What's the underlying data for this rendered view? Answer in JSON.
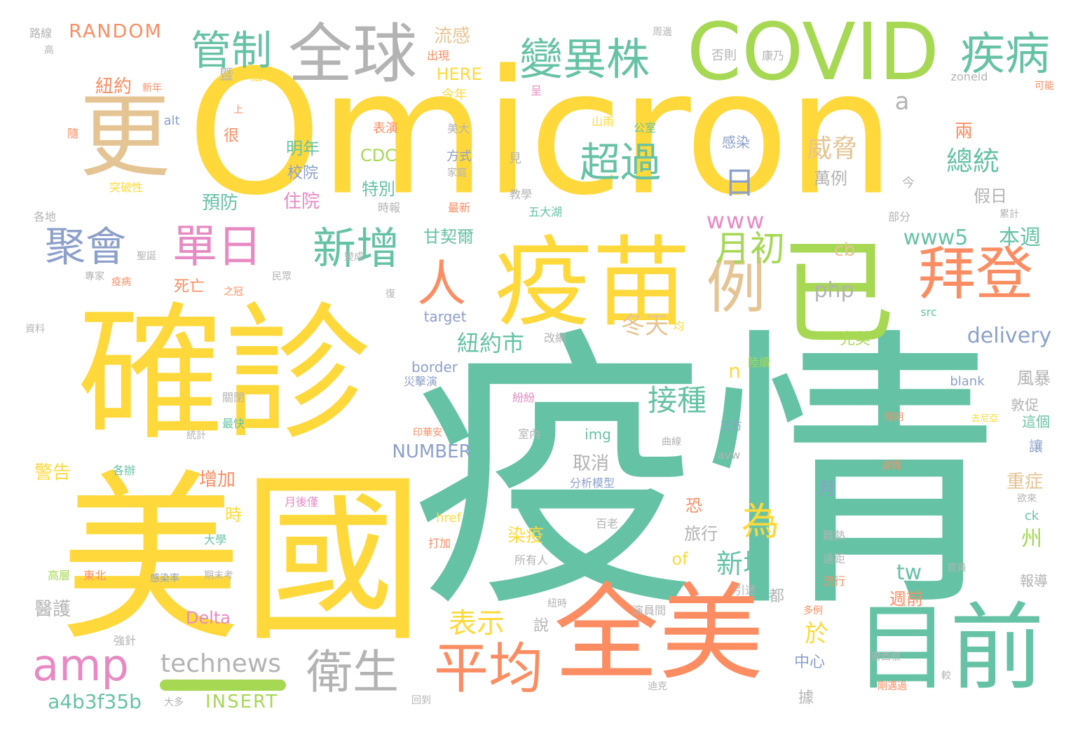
{
  "palette": {
    "yellow": "#FFD93B",
    "teal": "#66C2A5",
    "orange": "#FC8D62",
    "green": "#A6D854",
    "gray": "#B3B3B3",
    "tan": "#E5C494",
    "blue": "#8DA0CB",
    "pink": "#E78AC3"
  },
  "words": [
    {
      "id": "omicron",
      "text": "Omicron"
    },
    {
      "id": "yiqing",
      "text": "疫情"
    },
    {
      "id": "quezhen",
      "text": "確診"
    },
    {
      "id": "meiguo",
      "text": "美國"
    },
    {
      "id": "quanmei",
      "text": "全美"
    },
    {
      "id": "yimiao",
      "text": "疫苗"
    },
    {
      "id": "mubqian",
      "text": "目前"
    },
    {
      "id": "yi",
      "text": "已"
    },
    {
      "id": "geng",
      "text": "更"
    },
    {
      "id": "covid",
      "text": "COVID"
    },
    {
      "id": "quanqiu",
      "text": "全球"
    },
    {
      "id": "guanzhi",
      "text": "管制"
    },
    {
      "id": "bianyizhu",
      "text": "變異株"
    },
    {
      "id": "jibing",
      "text": "疾病"
    },
    {
      "id": "baideng",
      "text": "拜登"
    },
    {
      "id": "li",
      "text": "例"
    },
    {
      "id": "pingjun",
      "text": "平均"
    },
    {
      "id": "weisheng",
      "text": "衛生"
    },
    {
      "id": "amp",
      "text": "amp"
    },
    {
      "id": "danri",
      "text": "單日"
    },
    {
      "id": "xinzeng",
      "text": "新增"
    },
    {
      "id": "juhui",
      "text": "聚會"
    },
    {
      "id": "chaoguo",
      "text": "超過"
    },
    {
      "id": "ren",
      "text": "人"
    },
    {
      "id": "yuechu",
      "text": "月初"
    },
    {
      "id": "ri",
      "text": "日"
    },
    {
      "id": "weixie",
      "text": "威脅"
    },
    {
      "id": "zongtong",
      "text": "總統"
    },
    {
      "id": "random",
      "text": "RANDOM"
    },
    {
      "id": "liugan",
      "text": "流感"
    },
    {
      "id": "here",
      "text": "HERE"
    },
    {
      "id": "niuyue",
      "text": "紐約"
    },
    {
      "id": "a",
      "text": "a"
    },
    {
      "id": "www",
      "text": "www"
    },
    {
      "id": "www5",
      "text": "www5"
    },
    {
      "id": "benzhou",
      "text": "本週"
    },
    {
      "id": "php",
      "text": "php"
    },
    {
      "id": "cb",
      "text": "cb"
    },
    {
      "id": "delivery",
      "text": "delivery"
    },
    {
      "id": "niuyueshi",
      "text": "紐約市"
    },
    {
      "id": "dongtian",
      "text": "冬天"
    },
    {
      "id": "jiezhong",
      "text": "接種"
    },
    {
      "id": "wei",
      "text": "為"
    },
    {
      "id": "xinzeng2",
      "text": "新增"
    },
    {
      "id": "biaoshi",
      "text": "表示"
    },
    {
      "id": "technews",
      "text": "technews"
    },
    {
      "id": "a4b",
      "text": "a4b3f35b"
    },
    {
      "id": "insert",
      "text": "INSERT"
    },
    {
      "id": "number",
      "text": "NUMBER"
    },
    {
      "id": "delta",
      "text": "Delta"
    },
    {
      "id": "cdc",
      "text": "CDC"
    },
    {
      "id": "mingnian",
      "text": "明年"
    },
    {
      "id": "xiaoyuan",
      "text": "校院"
    },
    {
      "id": "zhuyuan",
      "text": "住院"
    },
    {
      "id": "yufang",
      "text": "預防"
    },
    {
      "id": "tebie",
      "text": "特別"
    },
    {
      "id": "ganqier",
      "text": "甘契爾"
    },
    {
      "id": "siwang",
      "text": "死亡"
    },
    {
      "id": "target",
      "text": "target"
    },
    {
      "id": "border",
      "text": "border"
    },
    {
      "id": "img",
      "text": "img"
    },
    {
      "id": "quxiao",
      "text": "取消"
    },
    {
      "id": "zengjia",
      "text": "增加"
    },
    {
      "id": "jinggao",
      "text": "警告"
    },
    {
      "id": "yihu",
      "text": "醫護"
    },
    {
      "id": "shi",
      "text": "時"
    },
    {
      "id": "lvxing",
      "text": "旅行"
    },
    {
      "id": "ranyi",
      "text": "染疫"
    },
    {
      "id": "of",
      "text": "of"
    },
    {
      "id": "n",
      "text": "n"
    },
    {
      "id": "tw",
      "text": "tw"
    },
    {
      "id": "zhouqian",
      "text": "週前"
    },
    {
      "id": "zhongzheng",
      "text": "重症"
    },
    {
      "id": "zhou",
      "text": "州"
    },
    {
      "id": "yu",
      "text": "於"
    },
    {
      "id": "fengbao",
      "text": "風暴"
    },
    {
      "id": "wanli",
      "text": "萬例"
    },
    {
      "id": "jiari",
      "text": "假日"
    },
    {
      "id": "wanmei",
      "text": "完美"
    },
    {
      "id": "ganran",
      "text": "感染"
    },
    {
      "id": "liang",
      "text": "兩"
    },
    {
      "id": "zhongxin",
      "text": "中心"
    },
    {
      "id": "ju",
      "text": "據"
    },
    {
      "id": "dou",
      "text": "都"
    },
    {
      "id": "shuo",
      "text": "說"
    },
    {
      "id": "hen",
      "text": "很"
    },
    {
      "id": "ji",
      "text": "暨"
    },
    {
      "id": "jinnian",
      "text": "今年"
    },
    {
      "id": "biaoyan",
      "text": "表演"
    },
    {
      "id": "fangshi",
      "text": "方式"
    },
    {
      "id": "meida",
      "text": "美大"
    },
    {
      "id": "kong",
      "text": "恐"
    },
    {
      "id": "yue",
      "text": "月"
    },
    {
      "id": "baogao",
      "text": "報導"
    },
    {
      "id": "zheige",
      "text": "這個"
    },
    {
      "id": "rang",
      "text": "讓"
    },
    {
      "id": "jiaocu",
      "text": "敦促"
    },
    {
      "id": "href",
      "text": "href"
    },
    {
      "id": "ck",
      "text": "ck"
    },
    {
      "id": "blank",
      "text": "blank"
    },
    {
      "id": "src",
      "text": "src"
    },
    {
      "id": "zoneid",
      "text": "zoneid"
    },
    {
      "id": "alt",
      "text": "alt"
    },
    {
      "id": "avw",
      "text": "avw"
    },
    {
      "id": "luxian",
      "text": "路線"
    },
    {
      "id": "gao",
      "text": "高"
    },
    {
      "id": "gedi",
      "text": "各地"
    },
    {
      "id": "ziliao",
      "text": "資料"
    },
    {
      "id": "guanbi",
      "text": "關閉"
    },
    {
      "id": "tongji",
      "text": "統計"
    },
    {
      "id": "zuikuai",
      "text": "最快"
    },
    {
      "id": "gebian",
      "text": "各辦"
    },
    {
      "id": "daxue",
      "text": "大學"
    },
    {
      "id": "gaoceng",
      "text": "高層"
    },
    {
      "id": "dongbei",
      "text": "東北"
    },
    {
      "id": "qiangzhen",
      "text": "強針"
    },
    {
      "id": "qimokao",
      "text": "期末考"
    },
    {
      "id": "ganranlv",
      "text": "感染率"
    },
    {
      "id": "yinyong",
      "text": "引述"
    },
    {
      "id": "luxu",
      "text": "陸續"
    },
    {
      "id": "zuixin",
      "text": "最新"
    },
    {
      "id": "jiaoxue",
      "text": "教學"
    },
    {
      "id": "wudahu",
      "text": "五大湖"
    },
    {
      "id": "shibao",
      "text": "時報"
    },
    {
      "id": "tupoxing",
      "text": "突破性"
    },
    {
      "id": "sui",
      "text": "隨"
    },
    {
      "id": "shang",
      "text": "上"
    },
    {
      "id": "jizeng",
      "text": "激增"
    },
    {
      "id": "chuxian",
      "text": "出現"
    },
    {
      "id": "xinnian",
      "text": "新年"
    },
    {
      "id": "cheng",
      "text": "呈"
    },
    {
      "id": "keneng",
      "text": "可能"
    },
    {
      "id": "fouze",
      "text": "否則"
    },
    {
      "id": "kangnai",
      "text": "康乃"
    },
    {
      "id": "zhoubian",
      "text": "周邊"
    },
    {
      "id": "gongshi",
      "text": "公室"
    },
    {
      "id": "shanyu",
      "text": "山雨"
    },
    {
      "id": "jian",
      "text": "見"
    },
    {
      "id": "jiating",
      "text": "家庭"
    },
    {
      "id": "jin",
      "text": "今"
    },
    {
      "id": "bufen",
      "text": "部分"
    },
    {
      "id": "leiji",
      "text": "累計"
    },
    {
      "id": "shengdan",
      "text": "聖誕"
    },
    {
      "id": "zhuanjia",
      "text": "專家"
    },
    {
      "id": "minzhong",
      "text": "民眾"
    },
    {
      "id": "zhiguan",
      "text": "之冠"
    },
    {
      "id": "fu",
      "text": "復"
    },
    {
      "id": "gaiwang",
      "text": "改網"
    },
    {
      "id": "jun",
      "text": "均"
    },
    {
      "id": "bianji",
      "text": "變成"
    },
    {
      "id": "yiyi",
      "text": "疫病"
    },
    {
      "id": "zaijiyan",
      "text": "災擊演"
    },
    {
      "id": "fenfen",
      "text": "紛紛"
    },
    {
      "id": "yinhuaan",
      "text": "印華安"
    },
    {
      "id": "shinei",
      "text": "室內"
    },
    {
      "id": "fenximoxing",
      "text": "分析模型"
    },
    {
      "id": "sanfang",
      "text": "三方"
    },
    {
      "id": "quxian",
      "text": "曲線"
    },
    {
      "id": "baiyuelao",
      "text": "百老"
    },
    {
      "id": "niushi",
      "text": "紐時"
    },
    {
      "id": "yanyuanjian",
      "text": "演員間"
    },
    {
      "id": "suoyouren",
      "text": "所有人"
    },
    {
      "id": "dajia",
      "text": "打加"
    },
    {
      "id": "yuehou",
      "text": "月後僅"
    },
    {
      "id": "huidao",
      "text": "回到"
    },
    {
      "id": "daduo",
      "text": "大多"
    },
    {
      "id": "mixigen",
      "text": "密西根"
    },
    {
      "id": "gangcheng",
      "text": "剛邁過"
    },
    {
      "id": "yuanju",
      "text": "遠距"
    },
    {
      "id": "liuxing",
      "text": "流行"
    },
    {
      "id": "guanyuan",
      "text": "官員"
    },
    {
      "id": "duoli",
      "text": "多例"
    },
    {
      "id": "nanre",
      "text": "難熱"
    },
    {
      "id": "yulai",
      "text": "欲來"
    },
    {
      "id": "jiaqi",
      "text": "假期"
    },
    {
      "id": "quyuan",
      "text": "去尼亞"
    },
    {
      "id": "jiao",
      "text": "較"
    },
    {
      "id": "dixin",
      "text": "迪克"
    },
    {
      "id": "yuancheng",
      "text": "遠程"
    }
  ]
}
